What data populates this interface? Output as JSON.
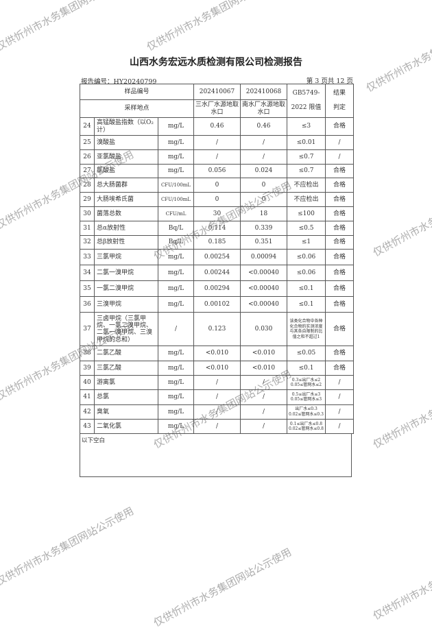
{
  "title": "山西水务宏远水质检测有限公司检测报告",
  "report_no": "报告编号：HY20240799",
  "page": "第 3 页共 12 页",
  "header": {
    "sample_no_label": "样品编号",
    "sample1": "202410067",
    "sample2": "202410068",
    "std1": "GB5749-",
    "std2": "2022 限值",
    "res1": "结果",
    "res2": "判定",
    "site_label": "采样地点",
    "site1": "三水厂水源地取水口",
    "site2": "南水厂水源地取水口"
  },
  "rows": [
    [
      "24",
      "高锰酸盐指数（以O₂计）",
      "mg/L",
      "0.46",
      "0.46",
      "≤3",
      "合格"
    ],
    [
      "25",
      "溴酸盐",
      "mg/L",
      "/",
      "/",
      "≤0.01",
      "/"
    ],
    [
      "26",
      "亚氯酸盐",
      "mg/L",
      "/",
      "/",
      "≤0.7",
      "/"
    ],
    [
      "27",
      "氯酸盐",
      "mg/L",
      "0.056",
      "0.024",
      "≤0.7",
      "合格"
    ],
    [
      "28",
      "总大肠菌群",
      "CFU/100mL",
      "0",
      "0",
      "不应检出",
      "合格"
    ],
    [
      "29",
      "大肠埃希氏菌",
      "CFU/100mL",
      "0",
      "0",
      "不应检出",
      "合格"
    ],
    [
      "30",
      "菌落总数",
      "CFU/mL",
      "30",
      "18",
      "≤100",
      "合格"
    ],
    [
      "31",
      "总α放射性",
      "Bq/L",
      "0.114",
      "0.339",
      "≤0.5",
      "合格"
    ],
    [
      "32",
      "总β放射性",
      "Bq/L",
      "0.185",
      "0.351",
      "≤1",
      "合格"
    ],
    [
      "33",
      "三氯甲烷",
      "mg/L",
      "0.00254",
      "0.00094",
      "≤0.06",
      "合格"
    ],
    [
      "34",
      "二氯一溴甲烷",
      "mg/L",
      "0.00244",
      "<0.00040",
      "≤0.06",
      "合格"
    ],
    [
      "35",
      "一氯二溴甲烷",
      "mg/L",
      "0.00294",
      "<0.00040",
      "≤0.1",
      "合格"
    ],
    [
      "36",
      "三溴甲烷",
      "mg/L",
      "0.00102",
      "<0.00040",
      "≤0.1",
      "合格"
    ],
    [
      "37",
      "三卤甲烷（三氯甲烷、一氯二溴甲烷、二氯一溴甲烷、三溴甲烷的总和）",
      "/",
      "0.123",
      "0.030",
      "该类化合物中各种化合物的实测浓度与其各自限制的比值之和不超过1",
      "合格"
    ],
    [
      "38",
      "二氯乙酸",
      "mg/L",
      "<0.010",
      "<0.010",
      "≤0.05",
      "合格"
    ],
    [
      "39",
      "三氯乙酸",
      "mg/L",
      "<0.010",
      "<0.010",
      "≤0.1",
      "合格"
    ],
    [
      "40",
      "游离氯",
      "mg/L",
      "/",
      "/",
      "0.3≤出厂水≤2 0.05≤管网水≤2",
      "/"
    ],
    [
      "41",
      "总氯",
      "mg/L",
      "/",
      "/",
      "0.5≤出厂水≤3 0.05≤管网水≤3",
      "/"
    ],
    [
      "42",
      "臭氧",
      "mg/L",
      "/",
      "/",
      "出厂水≤0.3 0.02≤管网水≤0.3",
      "/"
    ],
    [
      "43",
      "二氧化氯",
      "mg/L",
      "/",
      "/",
      "0.1≤出厂水≤0.8 0.02≤管网水≤0.8",
      "/"
    ]
  ],
  "footer": "以下空白",
  "watermark": "仅供忻州市水务集团网站公示使用"
}
